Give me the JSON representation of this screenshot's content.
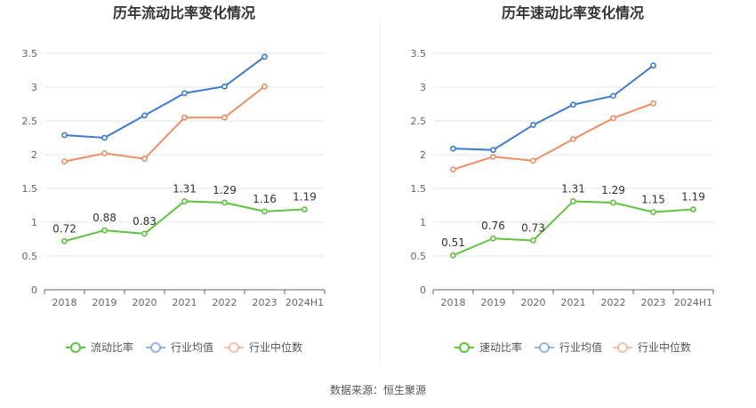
{
  "source": "数据来源：恒生聚源",
  "colors": {
    "primary": "#5ec43b",
    "avg": "#3d7ad6",
    "median": "#f08c62",
    "grid": "#e6e6e6",
    "axis": "#666666"
  },
  "chart_data": [
    {
      "type": "line",
      "title": "历年流动比率变化情况",
      "categories": [
        "2018",
        "2019",
        "2020",
        "2021",
        "2022",
        "2023",
        "2024H1"
      ],
      "ylim": [
        0,
        3.5
      ],
      "yticks": [
        "0",
        "0.5",
        "1",
        "1.5",
        "2",
        "2.5",
        "3",
        "3.5"
      ],
      "grid": true,
      "legend_position": "bottom",
      "series": [
        {
          "name": "流动比率",
          "color": "#5ec43b",
          "values": [
            0.72,
            0.88,
            0.83,
            1.31,
            1.29,
            1.16,
            1.19
          ],
          "labels": [
            "0.72",
            "0.88",
            "0.83",
            "1.31",
            "1.29",
            "1.16",
            "1.19"
          ]
        },
        {
          "name": "行业均值",
          "color": "#3d7ad6",
          "values": [
            2.29,
            2.25,
            2.58,
            2.91,
            3.01,
            3.45,
            null
          ]
        },
        {
          "name": "行业中位数",
          "color": "#f08c62",
          "values": [
            1.9,
            2.02,
            1.94,
            2.55,
            2.55,
            3.01,
            null
          ]
        }
      ]
    },
    {
      "type": "line",
      "title": "历年速动比率变化情况",
      "categories": [
        "2018",
        "2019",
        "2020",
        "2021",
        "2022",
        "2023",
        "2024H1"
      ],
      "ylim": [
        0,
        3.5
      ],
      "yticks": [
        "0",
        "0.5",
        "1",
        "1.5",
        "2",
        "2.5",
        "3",
        "3.5"
      ],
      "grid": true,
      "legend_position": "bottom",
      "series": [
        {
          "name": "速动比率",
          "color": "#5ec43b",
          "values": [
            0.51,
            0.76,
            0.73,
            1.31,
            1.29,
            1.15,
            1.19
          ],
          "labels": [
            "0.51",
            "0.76",
            "0.73",
            "1.31",
            "1.29",
            "1.15",
            "1.19"
          ]
        },
        {
          "name": "行业均值",
          "color": "#3d7ad6",
          "values": [
            2.09,
            2.07,
            2.44,
            2.74,
            2.87,
            3.32,
            null
          ]
        },
        {
          "name": "行业中位数",
          "color": "#f08c62",
          "values": [
            1.78,
            1.97,
            1.91,
            2.23,
            2.54,
            2.76,
            null
          ]
        }
      ]
    }
  ]
}
